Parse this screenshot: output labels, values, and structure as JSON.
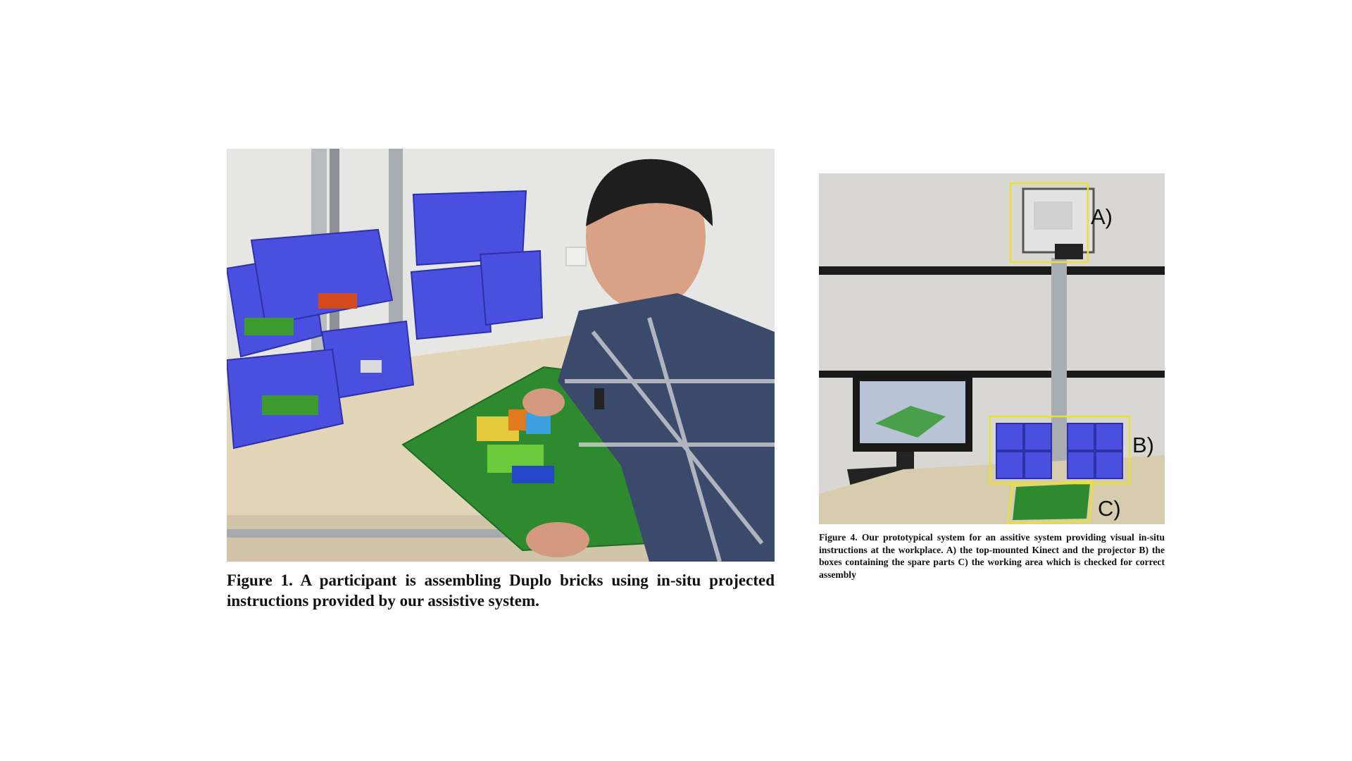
{
  "figure1": {
    "caption": "Figure 1.  A participant is assembling Duplo bricks using in-situ projected instructions provided by our assistive system.",
    "image": "photo of participant assembling Duplo bricks at workstation with blue bins"
  },
  "figure4": {
    "caption": "Figure 4. Our prototypical system for an assitive system providing visual in-situ instructions at the workplace. A) the top-mounted Kinect and the projector B) the boxes containing the spare parts C) the working area which is checked for correct assembly",
    "image": "photo of prototype workstation with monitor, bins and projector",
    "callouts": {
      "a": "A)",
      "b": "B)",
      "c": "C)"
    },
    "highlight_color": "#e8e03a"
  }
}
